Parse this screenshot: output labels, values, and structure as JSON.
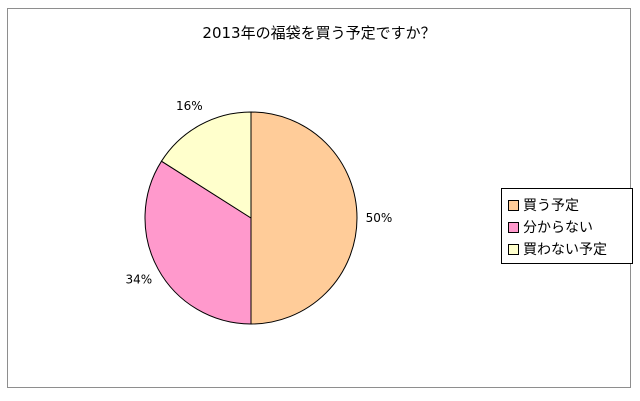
{
  "chart_data": {
    "type": "pie",
    "title": "2013年の福袋を買う予定ですか？",
    "categories": [
      "買う予定",
      "分からない",
      "買わない予定"
    ],
    "values": [
      50,
      34,
      16
    ],
    "value_labels": [
      "50%",
      "34%",
      "16%"
    ],
    "colors": [
      "#FFCC99",
      "#FF99CC",
      "#FFFFCC"
    ],
    "legend_position": "right"
  }
}
